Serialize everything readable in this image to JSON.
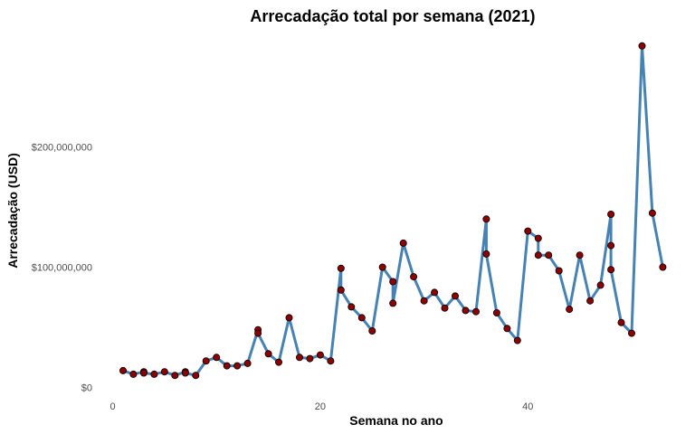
{
  "chart_data": {
    "type": "line",
    "title": "Arrecadação total por semana (2021)",
    "xlabel": "Semana no ano",
    "ylabel": "Arrecadação (USD)",
    "xlim": [
      0,
      53
    ],
    "ylim": [
      0,
      290000000
    ],
    "x_ticks": [
      0,
      20,
      40
    ],
    "x_tick_labels": [
      "0",
      "20",
      "40"
    ],
    "y_ticks": [
      0,
      100000000,
      200000000
    ],
    "y_tick_labels": [
      "$0",
      "$100,000,000",
      "$200,000,000"
    ],
    "grid": false,
    "colors": {
      "line": "#4682B4",
      "point": "#8B0000",
      "background": "#FFFFFF"
    },
    "series": [
      {
        "points": [
          [
            1,
            14000000
          ],
          [
            2,
            11000000
          ],
          [
            3,
            13000000
          ],
          [
            3,
            12000000
          ],
          [
            4,
            11000000
          ],
          [
            5,
            13000000
          ],
          [
            6,
            10000000
          ],
          [
            7,
            13000000
          ],
          [
            7,
            12000000
          ],
          [
            8,
            10000000
          ],
          [
            9,
            22000000
          ],
          [
            10,
            25000000
          ],
          [
            11,
            18000000
          ],
          [
            12,
            18000000
          ],
          [
            13,
            20000000
          ],
          [
            14,
            48000000
          ],
          [
            14,
            45000000
          ],
          [
            15,
            28000000
          ],
          [
            16,
            21000000
          ],
          [
            17,
            58000000
          ],
          [
            18,
            25000000
          ],
          [
            19,
            24000000
          ],
          [
            20,
            27000000
          ],
          [
            21,
            22000000
          ],
          [
            22,
            99000000
          ],
          [
            22,
            81000000
          ],
          [
            23,
            67000000
          ],
          [
            24,
            58000000
          ],
          [
            25,
            47000000
          ],
          [
            26,
            100000000
          ],
          [
            27,
            88000000
          ],
          [
            27,
            70000000
          ],
          [
            28,
            120000000
          ],
          [
            29,
            92000000
          ],
          [
            30,
            72000000
          ],
          [
            31,
            79000000
          ],
          [
            32,
            66000000
          ],
          [
            33,
            76000000
          ],
          [
            34,
            64000000
          ],
          [
            35,
            63000000
          ],
          [
            36,
            140000000
          ],
          [
            36,
            111000000
          ],
          [
            37,
            62000000
          ],
          [
            38,
            49000000
          ],
          [
            39,
            39000000
          ],
          [
            40,
            130000000
          ],
          [
            41,
            124000000
          ],
          [
            41,
            110000000
          ],
          [
            42,
            110000000
          ],
          [
            43,
            97000000
          ],
          [
            44,
            65000000
          ],
          [
            45,
            110000000
          ],
          [
            46,
            72000000
          ],
          [
            47,
            85000000
          ],
          [
            48,
            144000000
          ],
          [
            48,
            118000000
          ],
          [
            48,
            98000000
          ],
          [
            49,
            54000000
          ],
          [
            50,
            45000000
          ],
          [
            51,
            284000000
          ],
          [
            52,
            145000000
          ],
          [
            53,
            100000000
          ]
        ]
      }
    ]
  }
}
